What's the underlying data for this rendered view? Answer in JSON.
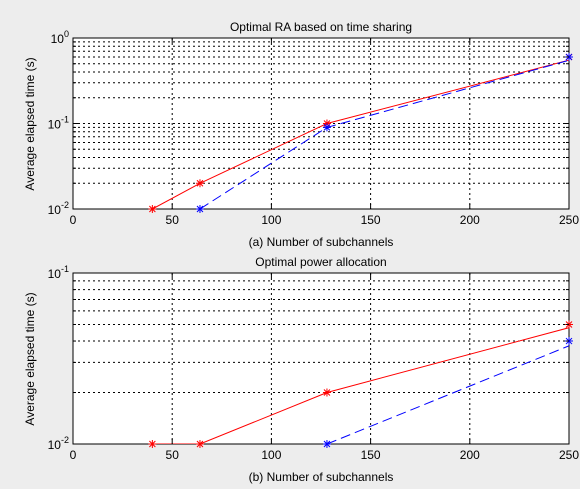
{
  "chart_data": [
    {
      "type": "line",
      "title": "Optimal RA based on time sharing",
      "xlabel": "(a) Number of subchannels",
      "ylabel": "Average elapsed time (s)",
      "xlim": [
        0,
        250
      ],
      "ylim": [
        0.01,
        1
      ],
      "yscale": "log",
      "grid": true,
      "x_ticks": [
        0,
        50,
        100,
        150,
        200,
        250
      ],
      "y_ticks": [
        0.01,
        0.1,
        1
      ],
      "y_tick_labels": [
        {
          "base": "10",
          "exp": "-2"
        },
        {
          "base": "10",
          "exp": "-1"
        },
        {
          "base": "10",
          "exp": "0"
        }
      ],
      "series": [
        {
          "color": "#ff0000",
          "dash": "solid",
          "marker": "*",
          "x": [
            40,
            64,
            128,
            256
          ],
          "y": [
            0.01,
            0.02,
            0.1,
            0.6
          ]
        },
        {
          "color": "#0000ff",
          "dash": "dashed",
          "marker": "*",
          "x": [
            64,
            128,
            256
          ],
          "y": [
            0.01,
            0.09,
            0.6
          ]
        }
      ]
    },
    {
      "type": "line",
      "title": "Optimal power allocation",
      "xlabel": "(b) Number of subchannels",
      "ylabel": "Average elapsed time (s)",
      "xlim": [
        0,
        250
      ],
      "ylim": [
        0.01,
        0.1
      ],
      "yscale": "log",
      "grid": true,
      "x_ticks": [
        0,
        50,
        100,
        150,
        200,
        250
      ],
      "y_ticks": [
        0.01,
        0.1
      ],
      "y_tick_labels": [
        {
          "base": "10",
          "exp": "-2"
        },
        {
          "base": "10",
          "exp": "-1"
        }
      ],
      "series": [
        {
          "color": "#ff0000",
          "dash": "solid",
          "marker": "*",
          "x": [
            40,
            64,
            128,
            256
          ],
          "y": [
            0.01,
            0.01,
            0.02,
            0.05
          ]
        },
        {
          "color": "#0000ff",
          "dash": "dashed",
          "marker": "*",
          "x": [
            128,
            256
          ],
          "y": [
            0.01,
            0.04
          ]
        }
      ]
    }
  ]
}
